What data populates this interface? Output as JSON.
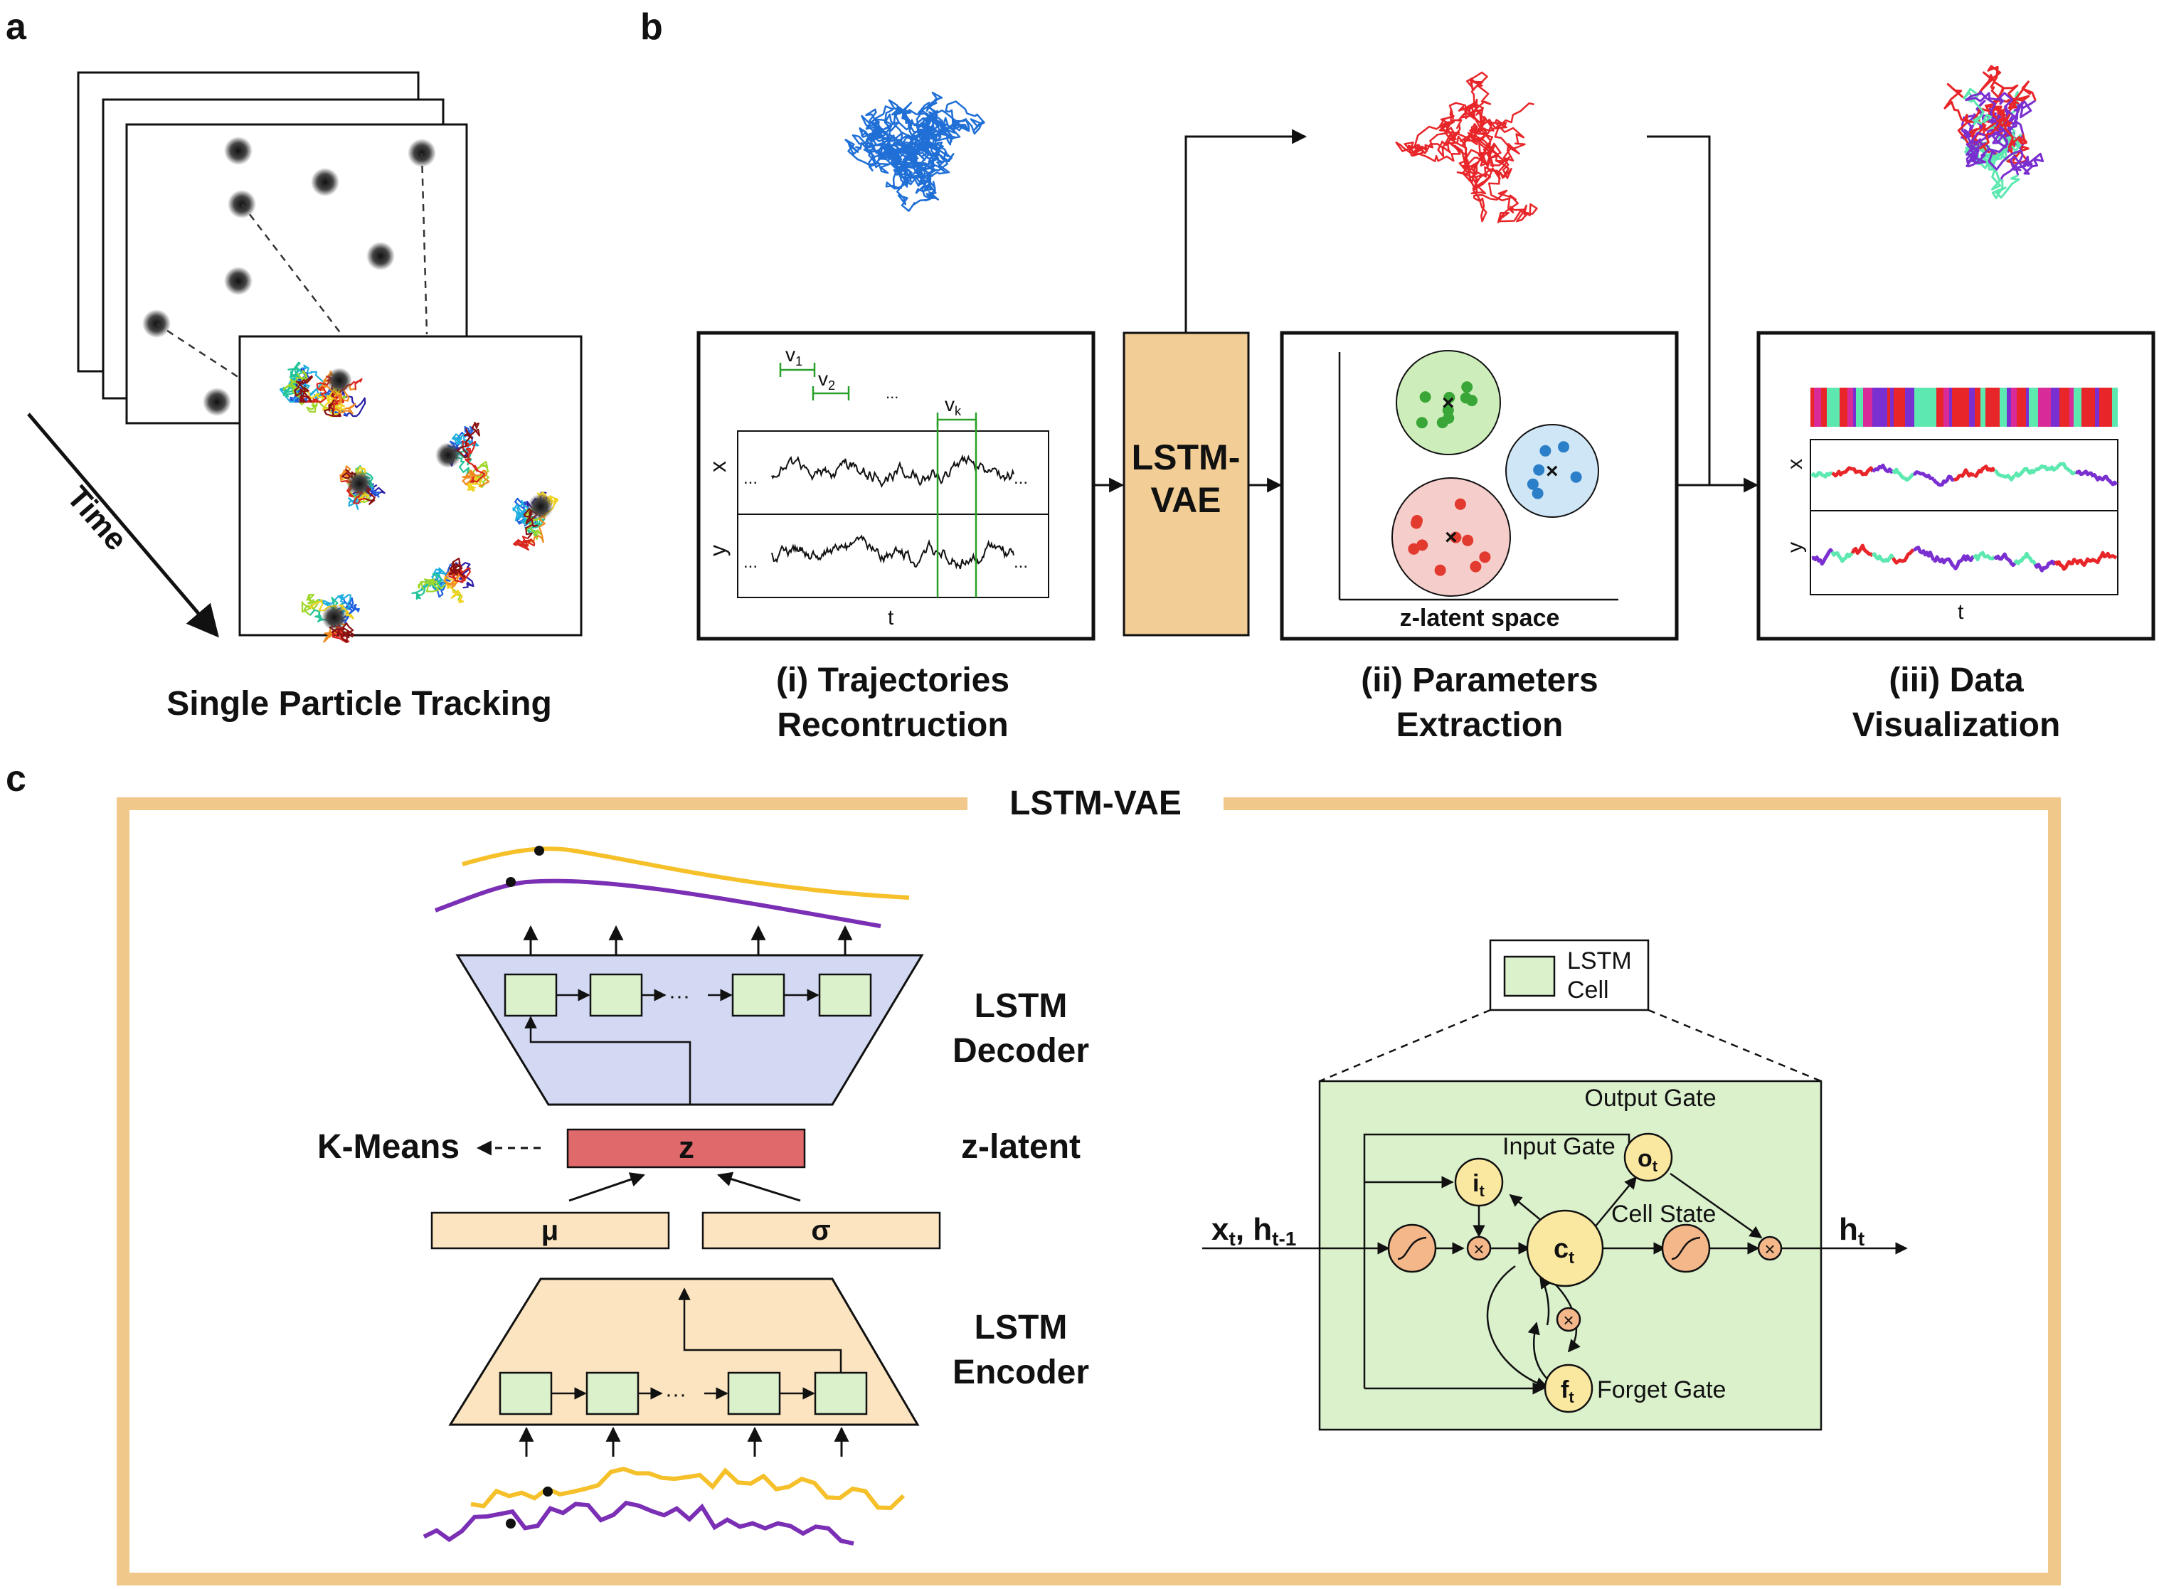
{
  "panels": {
    "a": "a",
    "b": "b",
    "c": "c"
  },
  "panel_a": {
    "time_label": "Time",
    "caption": "Single Particle Tracking"
  },
  "panel_b": {
    "traj_axis": {
      "x": "x",
      "y": "y",
      "t": "t",
      "dots": "...",
      "ellipsis": "..."
    },
    "windows": {
      "v1": "v",
      "v1_sub": "1",
      "v2": "v",
      "v2_sub": "2",
      "vk": "v",
      "vk_sub": "k"
    },
    "model_label_1": "LSTM-",
    "model_label_2": "VAE",
    "latent_label": "z-latent space",
    "viz_axis": {
      "x": "x",
      "y": "y",
      "t": "t"
    },
    "captions": {
      "i_1": "(i) Trajectories",
      "i_2": "Recontruction",
      "ii_1": "(ii) Parameters",
      "ii_2": "Extraction",
      "iii_1": "(iii) Data",
      "iii_2": "Visualization"
    },
    "colors": {
      "blue": "#1f6fd6",
      "red": "#e8262a",
      "purple": "#7a2fd0",
      "mint": "#5de8b0",
      "green_window": "#2aa02a"
    }
  },
  "panel_c": {
    "frame_title": "LSTM-VAE",
    "decoder_1": "LSTM",
    "decoder_2": "Decoder",
    "encoder_1": "LSTM",
    "encoder_2": "Encoder",
    "latent_side": "z-latent",
    "z": "z",
    "mu": "μ",
    "sigma": "σ",
    "kmeans": "K-Means",
    "dots": "···",
    "legend_1": "LSTM",
    "legend_2": "Cell",
    "gates": {
      "output": "Output Gate",
      "input": "Input Gate",
      "cell_state": "Cell State",
      "forget": "Forget Gate"
    },
    "symbols": {
      "o": "o",
      "o_sub": "t",
      "i": "i",
      "i_sub": "t",
      "c": "c",
      "c_sub": "t",
      "f": "f",
      "f_sub": "t",
      "times": "×"
    },
    "input_label": "x",
    "input_sub": "t",
    "input_sep": ", h",
    "input_sub2": "t-1",
    "output_label": "h",
    "output_sub": "t",
    "colors": {
      "frame": "#f0c98a",
      "decoder": "#d3d9f3",
      "encoder": "#fbe4bf",
      "z": "#e0696b",
      "cell": "#daf1cc",
      "gate": "#fbe8a0",
      "act": "#f4b78a",
      "yellow": "#f5c02a",
      "violet": "#7a2fb5"
    }
  }
}
